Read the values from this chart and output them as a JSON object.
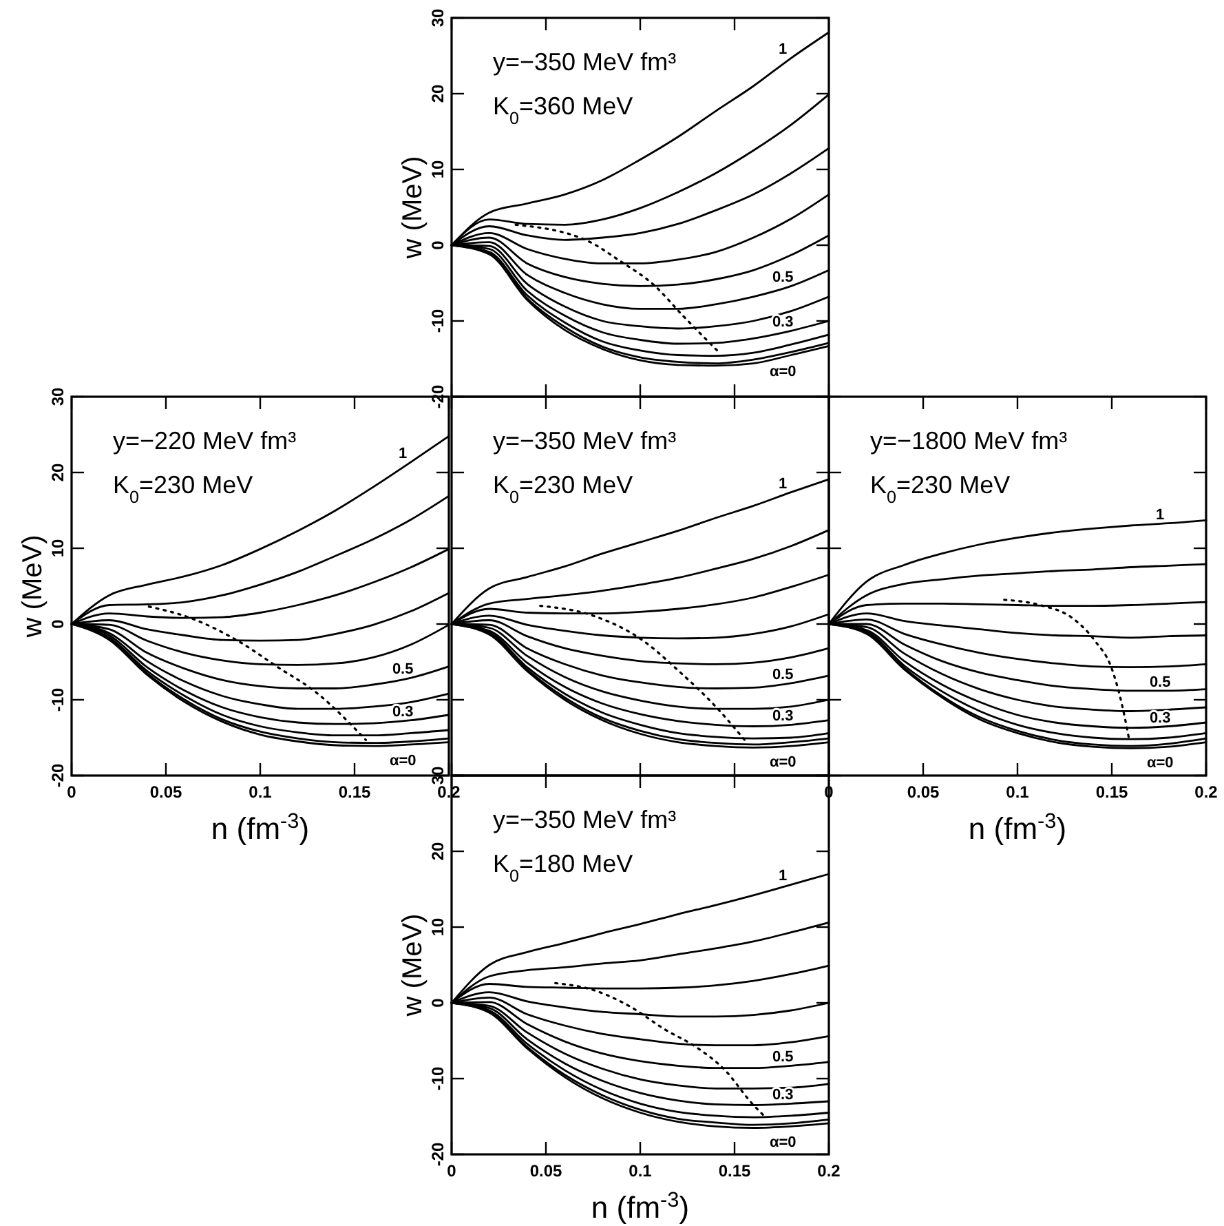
{
  "chart_data": [
    {
      "type": "line",
      "ylabel": "w (MeV)",
      "annotations": [
        "y=−350 MeV fm³",
        "K$_{0}$=360 MeV"
      ],
      "xlim": [
        0,
        0.2
      ],
      "ylim": [
        -20,
        30
      ],
      "xticks": [
        0,
        0.05,
        0.1,
        0.15,
        0.2
      ],
      "yticks": [
        -20,
        -10,
        0,
        10,
        20,
        30
      ],
      "tick_labels": "y",
      "x": [
        0,
        0.02,
        0.04,
        0.06,
        0.08,
        0.1,
        0.12,
        0.14,
        0.16,
        0.18,
        0.2
      ],
      "series": [
        {
          "name": "1",
          "color": "#000000",
          "values": [
            0,
            4.3,
            5.5,
            6.7,
            8.6,
            11.3,
            14.3,
            17.7,
            21,
            24.7,
            28.1
          ]
        },
        {
          "color": "#000000",
          "values": [
            0,
            3.4,
            2.8,
            2.7,
            3.4,
            4.9,
            7,
            9.5,
            12.5,
            15.9,
            19.9
          ]
        },
        {
          "color": "#000000",
          "values": [
            0,
            2.5,
            1.3,
            0.7,
            1,
            1.6,
            2.8,
            4.6,
            6.7,
            9.5,
            12.8
          ]
        },
        {
          "color": "#000000",
          "values": [
            0,
            1.6,
            -0.5,
            -1.8,
            -2.4,
            -2.4,
            -1.9,
            -0.9,
            1,
            3.5,
            6.7
          ]
        },
        {
          "color": "#000000",
          "values": [
            0,
            1,
            -2.4,
            -4.2,
            -5.1,
            -5.4,
            -5.2,
            -4.5,
            -3.3,
            -1.3,
            1.3
          ]
        },
        {
          "name": "0.5",
          "color": "#000000",
          "values": [
            0,
            0.4,
            -3.9,
            -6.3,
            -7.8,
            -8.4,
            -8.4,
            -7.8,
            -6.8,
            -5.4,
            -3.3
          ]
        },
        {
          "color": "#000000",
          "values": [
            0,
            -0.1,
            -5.1,
            -8.1,
            -10,
            -10.7,
            -11,
            -10.7,
            -10,
            -8.7,
            -6.8
          ]
        },
        {
          "name": "0.3",
          "color": "#000000",
          "values": [
            0,
            -0.5,
            -6,
            -9.3,
            -11.5,
            -12.5,
            -13,
            -12.9,
            -12.3,
            -11.3,
            -10
          ]
        },
        {
          "color": "#000000",
          "values": [
            0,
            -0.9,
            -6.6,
            -10.2,
            -12.7,
            -13.9,
            -14.5,
            -14.6,
            -14.2,
            -13.1,
            -11.8
          ]
        },
        {
          "color": "#000000",
          "values": [
            0,
            -1,
            -7,
            -10.8,
            -13.4,
            -14.8,
            -15.4,
            -15.6,
            -15.1,
            -14.1,
            -12.9
          ]
        },
        {
          "name": "α=0",
          "color": "#000000",
          "values": [
            0,
            -1.2,
            -7.2,
            -11.2,
            -13.7,
            -15.2,
            -15.8,
            -15.9,
            -15.6,
            -14.5,
            -13.3
          ]
        },
        {
          "type": "line",
          "line_style": "dotted",
          "color": "#000000",
          "x": [
            0.034,
            0.071,
            0.09,
            0.107,
            0.123,
            0.142
          ],
          "values": [
            2.7,
            0.7,
            -2.2,
            -5.2,
            -9.4,
            -14.2
          ]
        }
      ]
    },
    {
      "type": "line",
      "xlabel": "n (fm$^{-3}$)",
      "ylabel": "w (MeV)",
      "annotations": [
        "y=−220 MeV fm³",
        "K$_{0}$=230 MeV"
      ],
      "xlim": [
        0,
        0.2
      ],
      "ylim": [
        -20,
        30
      ],
      "xticks": [
        0,
        0.05,
        0.1,
        0.15,
        0.2
      ],
      "yticks": [
        -20,
        -10,
        0,
        10,
        20,
        30
      ],
      "x": [
        0,
        0.02,
        0.04,
        0.06,
        0.08,
        0.1,
        0.12,
        0.14,
        0.16,
        0.18,
        0.2
      ],
      "series": [
        {
          "name": "1",
          "color": "#000000",
          "values": [
            0,
            3.8,
            5.2,
            6.3,
            7.8,
            9.9,
            12.3,
            15,
            18.1,
            21.4,
            24.8
          ]
        },
        {
          "color": "#000000",
          "values": [
            0,
            2.5,
            2.6,
            2.9,
            3.8,
            5.2,
            6.9,
            9,
            11.2,
            13.8,
            16.9
          ]
        },
        {
          "color": "#000000",
          "values": [
            0,
            1.4,
            1,
            0.8,
            0.9,
            1.5,
            2.5,
            3.8,
            5.5,
            7.5,
            9.9
          ]
        },
        {
          "color": "#000000",
          "values": [
            0,
            0.5,
            -0.7,
            -1.5,
            -2.1,
            -2.2,
            -2.1,
            -1.3,
            -0.1,
            1.7,
            4.1
          ]
        },
        {
          "color": "#000000",
          "values": [
            0,
            -0.1,
            -2.2,
            -3.8,
            -4.8,
            -5.3,
            -5.4,
            -5.2,
            -4.4,
            -2.7,
            -0.1
          ]
        },
        {
          "name": "0.5",
          "color": "#000000",
          "values": [
            0,
            -0.7,
            -3.8,
            -5.9,
            -7.4,
            -8.2,
            -8.5,
            -8.5,
            -8,
            -7.1,
            -5.6
          ]
        },
        {
          "color": "#000000",
          "values": [
            0,
            -1.2,
            -4.9,
            -7.6,
            -9.5,
            -10.6,
            -11.2,
            -11.2,
            -10.9,
            -10.3,
            -9.2
          ]
        },
        {
          "name": "0.3",
          "color": "#000000",
          "values": [
            0,
            -1.5,
            -5.7,
            -8.8,
            -11,
            -12.3,
            -13,
            -13.2,
            -13.1,
            -12.7,
            -12
          ]
        },
        {
          "color": "#000000",
          "values": [
            0,
            -1.8,
            -6.2,
            -9.5,
            -12,
            -13.5,
            -14.3,
            -14.7,
            -14.7,
            -14.4,
            -14
          ]
        },
        {
          "color": "#000000",
          "values": [
            0,
            -1.9,
            -6.5,
            -10,
            -12.6,
            -14.2,
            -15.1,
            -15.6,
            -15.7,
            -15.5,
            -15.1
          ]
        },
        {
          "name": "α=0",
          "color": "#000000",
          "values": [
            0,
            -2.1,
            -6.7,
            -10.3,
            -12.9,
            -14.6,
            -15.5,
            -16,
            -16.1,
            -15.9,
            -15.6
          ]
        },
        {
          "type": "line",
          "line_style": "dotted",
          "color": "#000000",
          "x": [
            0.041,
            0.063,
            0.088,
            0.11,
            0.129,
            0.156
          ],
          "values": [
            2.3,
            0.8,
            -2.2,
            -5.8,
            -8.9,
            -15.3
          ]
        }
      ]
    },
    {
      "type": "line",
      "annotations": [
        "y=−350 MeV fm³",
        "K$_{0}$=230 MeV"
      ],
      "xlim": [
        0,
        0.2
      ],
      "ylim": [
        -20,
        30
      ],
      "xticks": [
        0,
        0.05,
        0.1,
        0.15,
        0.2
      ],
      "yticks": [
        -20,
        -10,
        0,
        10,
        20,
        30
      ],
      "tick_labels": false,
      "x": [
        0,
        0.02,
        0.04,
        0.06,
        0.08,
        0.1,
        0.12,
        0.14,
        0.16,
        0.18,
        0.2
      ],
      "series": [
        {
          "name": "1",
          "color": "#000000",
          "values": [
            0,
            4.7,
            6.2,
            7.6,
            9.3,
            10.8,
            12.3,
            14,
            15.6,
            17.4,
            19.1
          ]
        },
        {
          "color": "#000000",
          "values": [
            0,
            2.7,
            3.3,
            3.8,
            4.4,
            5.2,
            6.1,
            7.3,
            8.6,
            10.3,
            12.4
          ]
        },
        {
          "color": "#000000",
          "values": [
            0,
            2,
            1.5,
            1.4,
            1.4,
            1.6,
            2,
            2.6,
            3.5,
            4.9,
            6.5
          ]
        },
        {
          "color": "#000000",
          "values": [
            0,
            1.1,
            -0.1,
            -0.9,
            -1.5,
            -1.8,
            -1.9,
            -1.8,
            -1.3,
            -0.3,
            1.3
          ]
        },
        {
          "color": "#000000",
          "values": [
            0,
            0.5,
            -1.6,
            -3.2,
            -4.2,
            -4.9,
            -5.2,
            -5.3,
            -5.1,
            -4.4,
            -3.2
          ]
        },
        {
          "name": "0.5",
          "color": "#000000",
          "values": [
            0,
            -0.1,
            -3.2,
            -5.3,
            -6.8,
            -7.7,
            -8.3,
            -8.5,
            -8.4,
            -7.8,
            -6.8
          ]
        },
        {
          "color": "#000000",
          "values": [
            0,
            -0.5,
            -4.2,
            -7,
            -8.9,
            -10.1,
            -10.9,
            -11.2,
            -11.2,
            -10.9,
            -10
          ]
        },
        {
          "name": "0.3",
          "color": "#000000",
          "values": [
            0,
            -0.9,
            -5.1,
            -8.3,
            -10.5,
            -11.9,
            -12.8,
            -13.3,
            -13.5,
            -13.3,
            -12.7
          ]
        },
        {
          "color": "#000000",
          "values": [
            0,
            -1.1,
            -5.7,
            -9.2,
            -11.7,
            -13.3,
            -14.4,
            -14.9,
            -15.1,
            -15,
            -14.4
          ]
        },
        {
          "color": "#000000",
          "values": [
            0,
            -1.3,
            -6,
            -9.7,
            -12.4,
            -14.1,
            -15.2,
            -15.7,
            -15.9,
            -15.6,
            -15.1
          ]
        },
        {
          "name": "α=0",
          "color": "#000000",
          "values": [
            0,
            -1.4,
            -6.2,
            -10,
            -12.7,
            -14.5,
            -15.6,
            -16.1,
            -16.3,
            -16.1,
            -15.6
          ]
        },
        {
          "type": "line",
          "line_style": "dotted",
          "color": "#000000",
          "x": [
            0.047,
            0.075,
            0.101,
            0.12,
            0.14,
            0.156
          ],
          "values": [
            2.4,
            1.1,
            -2.1,
            -6.1,
            -10.9,
            -15.5
          ]
        }
      ]
    },
    {
      "type": "line",
      "xlabel": "n (fm$^{-3}$)",
      "annotations": [
        "y=−1800 MeV fm³",
        "K$_{0}$=230 MeV"
      ],
      "xlim": [
        0,
        0.2
      ],
      "ylim": [
        -20,
        30
      ],
      "xticks": [
        0,
        0.05,
        0.1,
        0.15,
        0.2
      ],
      "yticks": [
        -20,
        -10,
        0,
        10,
        20,
        30
      ],
      "tick_labels": "x",
      "x": [
        0,
        0.02,
        0.04,
        0.06,
        0.08,
        0.1,
        0.12,
        0.14,
        0.16,
        0.18,
        0.2
      ],
      "series": [
        {
          "name": "1",
          "color": "#000000",
          "values": [
            0,
            5.6,
            7.8,
            9.3,
            10.5,
            11.4,
            12.1,
            12.6,
            13,
            13.3,
            13.7
          ]
        },
        {
          "color": "#000000",
          "values": [
            0,
            3.8,
            5.3,
            5.9,
            6.4,
            6.7,
            7,
            7.2,
            7.5,
            7.7,
            7.9
          ]
        },
        {
          "color": "#000000",
          "values": [
            0,
            2.5,
            2.7,
            2.7,
            2.6,
            2.5,
            2.4,
            2.4,
            2.5,
            2.7,
            2.9
          ]
        },
        {
          "color": "#000000",
          "values": [
            0,
            1.4,
            0.4,
            -0.2,
            -0.7,
            -1.2,
            -1.5,
            -1.6,
            -1.8,
            -1.6,
            -1.5
          ]
        },
        {
          "color": "#000000",
          "values": [
            0,
            0.6,
            -1.3,
            -2.7,
            -3.8,
            -4.6,
            -5.2,
            -5.6,
            -5.7,
            -5.6,
            -5.3
          ]
        },
        {
          "name": "0.5",
          "color": "#000000",
          "values": [
            0,
            0,
            -2.7,
            -4.9,
            -6.4,
            -7.4,
            -8.2,
            -8.6,
            -8.8,
            -8.8,
            -8.6
          ]
        },
        {
          "color": "#000000",
          "values": [
            0,
            -0.4,
            -3.9,
            -6.6,
            -8.6,
            -10,
            -10.9,
            -11.3,
            -11.5,
            -11.3,
            -11
          ]
        },
        {
          "name": "0.3",
          "color": "#000000",
          "values": [
            0,
            -0.8,
            -4.9,
            -8,
            -10.3,
            -12,
            -13,
            -13.5,
            -13.7,
            -13.5,
            -13
          ]
        },
        {
          "color": "#000000",
          "values": [
            0,
            -1,
            -5.5,
            -8.9,
            -11.5,
            -13.3,
            -14.4,
            -15,
            -15.2,
            -15,
            -14.4
          ]
        },
        {
          "color": "#000000",
          "values": [
            0,
            -1.2,
            -5.8,
            -9.5,
            -12.3,
            -14.1,
            -15.3,
            -15.9,
            -16.1,
            -15.8,
            -15.1
          ]
        },
        {
          "name": "α=0",
          "color": "#000000",
          "values": [
            0,
            -1.3,
            -6,
            -9.7,
            -12.6,
            -14.4,
            -15.6,
            -16.2,
            -16.4,
            -16.2,
            -15.6
          ]
        },
        {
          "type": "line",
          "line_style": "dotted",
          "color": "#000000",
          "x": [
            0.093,
            0.112,
            0.129,
            0.141,
            0.15,
            0.156,
            0.159
          ],
          "values": [
            3.2,
            2.5,
            0.8,
            -2.2,
            -5.9,
            -11.3,
            -15
          ]
        }
      ]
    },
    {
      "type": "line",
      "xlabel": "n (fm$^{-3}$)",
      "ylabel": "w (MeV)",
      "annotations": [
        "y=−350 MeV fm³",
        "K$_{0}$=180 MeV"
      ],
      "xlim": [
        0,
        0.2
      ],
      "ylim": [
        -20,
        30
      ],
      "xticks": [
        0,
        0.05,
        0.1,
        0.15,
        0.2
      ],
      "yticks": [
        -20,
        -10,
        0,
        10,
        20,
        30
      ],
      "x": [
        0,
        0.02,
        0.04,
        0.06,
        0.08,
        0.1,
        0.12,
        0.14,
        0.16,
        0.18,
        0.2
      ],
      "series": [
        {
          "name": "1",
          "color": "#000000",
          "values": [
            0,
            5,
            6.7,
            7.9,
            9.2,
            10.4,
            11.7,
            12.9,
            14.2,
            15.6,
            17
          ]
        },
        {
          "color": "#000000",
          "values": [
            0,
            3.5,
            4.3,
            4.7,
            5.2,
            5.6,
            6.4,
            7.2,
            8.1,
            9.3,
            10.6
          ]
        },
        {
          "color": "#000000",
          "values": [
            0,
            2.5,
            2.1,
            2,
            1.9,
            1.9,
            2,
            2.3,
            2.9,
            3.8,
            4.9
          ]
        },
        {
          "color": "#000000",
          "values": [
            0,
            1.4,
            0.2,
            -0.6,
            -1.2,
            -1.5,
            -1.8,
            -1.8,
            -1.6,
            -1,
            0
          ]
        },
        {
          "color": "#000000",
          "values": [
            0,
            0.7,
            -1.5,
            -3,
            -4.1,
            -4.8,
            -5.4,
            -5.6,
            -5.6,
            -5.2,
            -4.4
          ]
        },
        {
          "name": "0.5",
          "color": "#000000",
          "values": [
            0,
            0.1,
            -2.8,
            -5.1,
            -6.7,
            -7.7,
            -8.3,
            -8.6,
            -8.6,
            -8.3,
            -7.8
          ]
        },
        {
          "color": "#000000",
          "values": [
            0,
            -0.4,
            -3.9,
            -6.7,
            -8.7,
            -10.1,
            -10.9,
            -11.3,
            -11.3,
            -11.2,
            -10.7
          ]
        },
        {
          "name": "0.3",
          "color": "#000000",
          "values": [
            0,
            -0.7,
            -4.8,
            -8,
            -10.3,
            -11.9,
            -12.9,
            -13.4,
            -13.5,
            -13.3,
            -13
          ]
        },
        {
          "color": "#000000",
          "values": [
            0,
            -1,
            -5.4,
            -8.9,
            -11.5,
            -13.3,
            -14.4,
            -14.9,
            -15.1,
            -14.9,
            -14.5
          ]
        },
        {
          "color": "#000000",
          "values": [
            0,
            -1.2,
            -5.8,
            -9.5,
            -12.2,
            -14.1,
            -15.3,
            -15.8,
            -16.1,
            -15.9,
            -15.4
          ]
        },
        {
          "name": "α=0",
          "color": "#000000",
          "values": [
            0,
            -1.3,
            -6,
            -9.8,
            -12.6,
            -14.5,
            -15.7,
            -16.3,
            -16.5,
            -16.3,
            -15.9
          ]
        },
        {
          "type": "line",
          "line_style": "dotted",
          "color": "#000000",
          "x": [
            0.055,
            0.075,
            0.094,
            0.113,
            0.13,
            0.145,
            0.159,
            0.166
          ],
          "values": [
            2.6,
            1.7,
            -0.4,
            -3.5,
            -5.9,
            -8.9,
            -13.2,
            -15
          ]
        }
      ]
    }
  ]
}
